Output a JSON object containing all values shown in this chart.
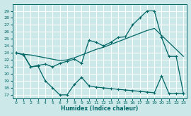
{
  "xlabel": "Humidex (Indice chaleur)",
  "bg_color": "#cce8e8",
  "line_color": "#006666",
  "grid_color": "#ffffff",
  "xlim": [
    -0.5,
    23.5
  ],
  "ylim": [
    16.5,
    30.0
  ],
  "yticks": [
    17,
    18,
    19,
    20,
    21,
    22,
    23,
    24,
    25,
    26,
    27,
    28,
    29
  ],
  "xticks": [
    0,
    1,
    2,
    3,
    4,
    5,
    6,
    7,
    8,
    9,
    10,
    11,
    12,
    13,
    14,
    15,
    16,
    17,
    18,
    19,
    20,
    21,
    22,
    23
  ],
  "line_top_x": [
    0,
    1,
    2,
    3,
    4,
    5,
    6,
    7,
    8,
    9,
    10,
    11,
    12,
    13,
    14,
    15,
    16,
    17,
    18,
    19,
    20,
    21,
    22,
    23
  ],
  "line_top_y": [
    23,
    22.8,
    22.7,
    22.5,
    22.3,
    22.1,
    21.9,
    22.0,
    22.3,
    22.7,
    23.1,
    23.5,
    23.8,
    24.2,
    24.6,
    25.0,
    25.4,
    25.8,
    26.2,
    26.5,
    25.5,
    24.5,
    23.5,
    22.5
  ],
  "line_mid_x": [
    0,
    1,
    2,
    3,
    4,
    5,
    6,
    7,
    8,
    9,
    10,
    11,
    12,
    13,
    14,
    15,
    16,
    17,
    18,
    19,
    20,
    21,
    22,
    23
  ],
  "line_mid_y": [
    23,
    22.8,
    21.0,
    21.2,
    21.4,
    21.0,
    21.5,
    21.8,
    22.1,
    21.5,
    24.8,
    24.5,
    24.0,
    24.5,
    25.2,
    25.3,
    27.0,
    28.0,
    29.0,
    29.0,
    25.2,
    22.5,
    22.5,
    17.2
  ],
  "line_bot_x": [
    0,
    1,
    2,
    3,
    4,
    5,
    6,
    7,
    8,
    9,
    10,
    11,
    12,
    13,
    14,
    15,
    16,
    17,
    18,
    19,
    20,
    21,
    22,
    23
  ],
  "line_bot_y": [
    23,
    22.7,
    21.0,
    21.1,
    19.0,
    18.0,
    17.0,
    17.0,
    18.5,
    19.5,
    18.3,
    18.1,
    18.0,
    17.9,
    17.8,
    17.7,
    17.6,
    17.5,
    17.4,
    17.3,
    19.7,
    17.2,
    17.2,
    17.2
  ]
}
